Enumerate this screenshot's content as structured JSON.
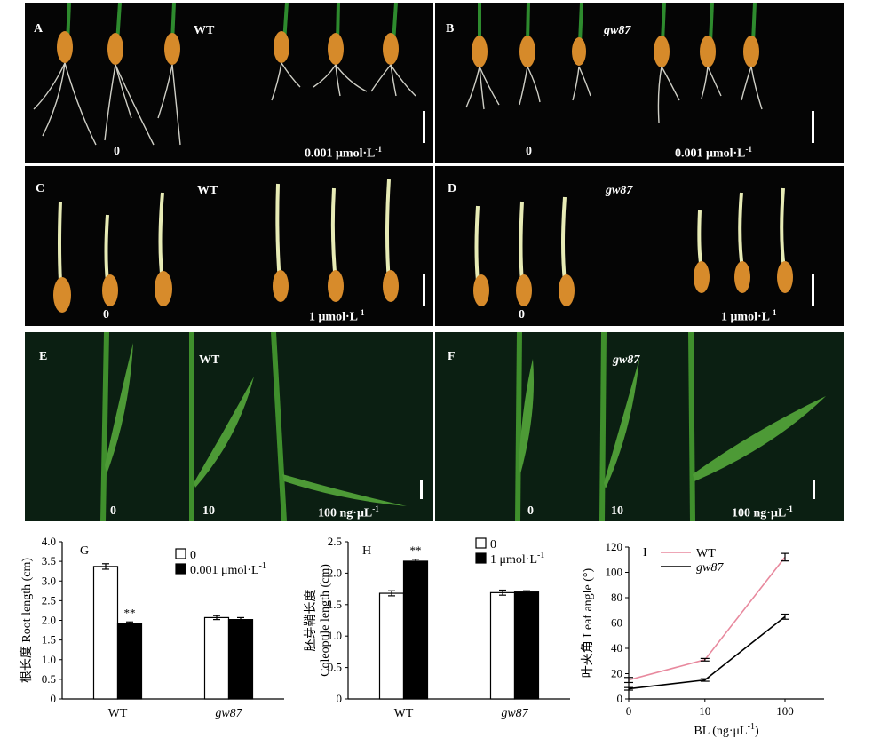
{
  "photo_panels": [
    {
      "label": "A",
      "genotype": "WT",
      "treatments": [
        "0",
        "0.001 μmol·L",
        "-1"
      ]
    },
    {
      "label": "B",
      "genotype": "gw87",
      "treatments": [
        "0",
        "0.001 μmol·L",
        "-1"
      ]
    },
    {
      "label": "C",
      "genotype": "WT",
      "treatments": [
        "0",
        "1 μmol·L",
        "-1"
      ]
    },
    {
      "label": "D",
      "genotype": "gw87",
      "treatments": [
        "0",
        "1 μmol·L",
        "-1"
      ]
    },
    {
      "label": "E",
      "genotype": "WT",
      "treatments": [
        "0",
        "10",
        "100 ng·μL",
        "-1"
      ]
    },
    {
      "label": "F",
      "genotype": "gw87",
      "treatments": [
        "0",
        "10",
        "100 ng·μL",
        "-1"
      ]
    }
  ],
  "colors": {
    "wt_line": "#e8899e",
    "gw87_line": "#000000",
    "bar_control": "#ffffff",
    "bar_treated": "#000000"
  },
  "chart_data": [
    {
      "panel": "G",
      "type": "bar",
      "categories": [
        "WT",
        "gw87"
      ],
      "ylabel": "根长度 Root length (cm)",
      "ylim": [
        0,
        4.0
      ],
      "yticks": [
        "0",
        "0.5",
        "1.0",
        "1.5",
        "2.0",
        "2.5",
        "3.0",
        "3.5",
        "4.0"
      ],
      "series": [
        {
          "name": "0",
          "values": [
            3.37,
            2.07
          ],
          "errors": [
            0.07,
            0.05
          ]
        },
        {
          "name": "0.001 μmol·L",
          "name_sup": "-1",
          "values": [
            1.92,
            2.02
          ],
          "errors": [
            0.04,
            0.05
          ]
        }
      ],
      "annotations": [
        "**"
      ]
    },
    {
      "panel": "H",
      "type": "bar",
      "categories": [
        "WT",
        "gw87"
      ],
      "ylabel_cn": "胚芽鞘长度",
      "ylabel": "Coleoptile length (cm)",
      "ylim": [
        0,
        2.5
      ],
      "yticks": [
        "0",
        "0.5",
        "1.0",
        "1.5",
        "2.0",
        "2.5"
      ],
      "series": [
        {
          "name": "0",
          "values": [
            1.68,
            1.69
          ],
          "errors": [
            0.04,
            0.04
          ]
        },
        {
          "name": "1 μmol·L",
          "name_sup": "-1",
          "values": [
            2.19,
            1.7
          ],
          "errors": [
            0.03,
            0.02
          ]
        }
      ],
      "annotations": [
        "**"
      ]
    },
    {
      "panel": "I",
      "type": "line",
      "x": [
        "0",
        "10",
        "100"
      ],
      "xlabel": "BL (ng·μL",
      "xlabel_sup": "-1",
      "xlabel_end": ")",
      "ylabel": "叶夹角 Leaf angle (°)",
      "ylim": [
        0,
        120
      ],
      "yticks": [
        "0",
        "20",
        "40",
        "60",
        "80",
        "100",
        "120"
      ],
      "series": [
        {
          "name": "WT",
          "values": [
            15,
            31,
            112
          ],
          "errors": [
            2,
            1,
            3
          ]
        },
        {
          "name": "gw87",
          "values": [
            8,
            15,
            65
          ],
          "errors": [
            1,
            1,
            2
          ]
        }
      ]
    }
  ]
}
